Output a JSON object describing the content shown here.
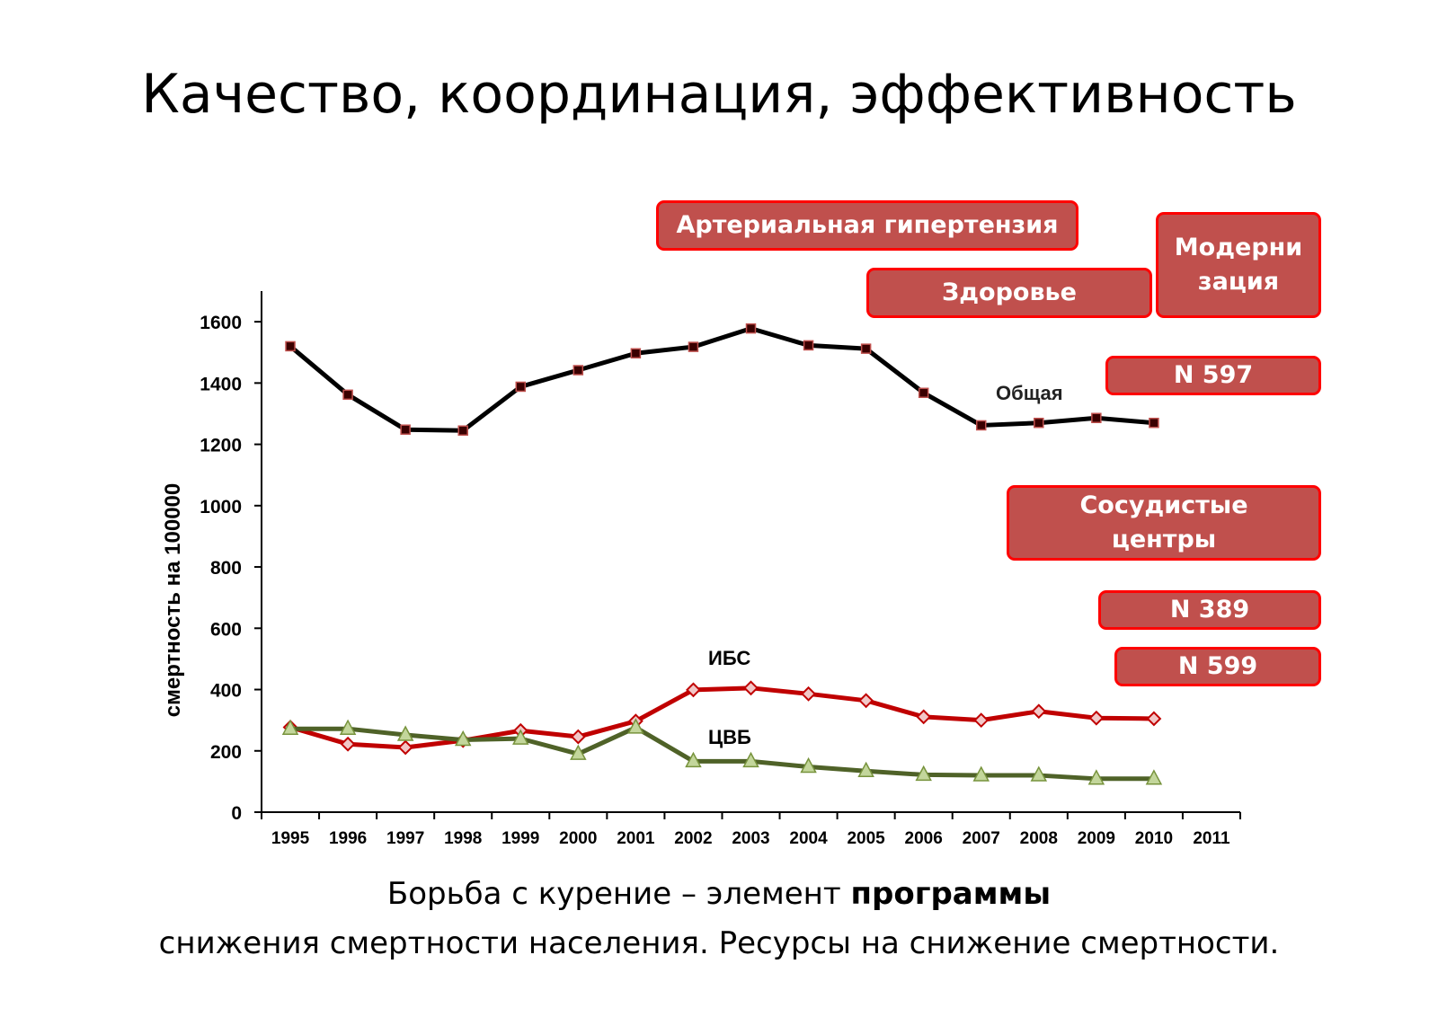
{
  "slide": {
    "title": "Качество, координация, эффективность",
    "caption_line1_start": "Борьба с курение – элемент ",
    "caption_line1_bold": "программы",
    "caption_line2": "снижения смертности населения. Ресурсы на снижение смертности."
  },
  "tags": {
    "hypertension": "Артериальная гипертензия",
    "health": "Здоровье",
    "modernization_line1": "Модерни",
    "modernization_line2": "зация",
    "n597": "N 597",
    "vascular_line1": "Сосудистые",
    "vascular_line2": "центры",
    "n389": "N 389",
    "n599": "N 599"
  },
  "colors": {
    "obshaya": "#000000",
    "ibs": "#c00000",
    "cvb": "#4f6228",
    "tag_fill": "#c0504d",
    "tag_border": "#ff0000"
  },
  "chart_data": {
    "type": "line",
    "ylabel": "смертность  на  100000",
    "xlabel": "",
    "ylim": [
      0,
      1700
    ],
    "yticks": [
      0,
      200,
      400,
      600,
      800,
      1000,
      1200,
      1400,
      1600
    ],
    "categories": [
      "1995",
      "1996",
      "1997",
      "1998",
      "1999",
      "2000",
      "2001",
      "2002",
      "2003",
      "2004",
      "2005",
      "2006",
      "2007",
      "2008",
      "2009",
      "2010",
      "2011"
    ],
    "series": [
      {
        "name": "Общая",
        "color": "#000000",
        "marker": "square",
        "values": [
          1520,
          1362,
          1248,
          1245,
          1388,
          1442,
          1497,
          1518,
          1578,
          1523,
          1512,
          1368,
          1262,
          1270,
          1286,
          1270,
          null
        ]
      },
      {
        "name": "ИБС",
        "color": "#c00000",
        "marker": "diamond",
        "values": [
          277,
          222,
          211,
          234,
          266,
          246,
          297,
          399,
          405,
          386,
          364,
          311,
          300,
          329,
          307,
          305,
          null
        ]
      },
      {
        "name": "ЦВБ",
        "color": "#4f6228",
        "marker": "triangle",
        "values": [
          272,
          272,
          252,
          236,
          240,
          190,
          276,
          166,
          166,
          148,
          134,
          122,
          120,
          120,
          109,
          109,
          null
        ]
      }
    ]
  }
}
